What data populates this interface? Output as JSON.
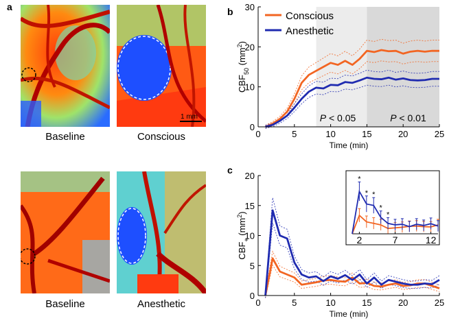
{
  "panels": {
    "a": {
      "letter": "a",
      "captions": [
        "Baseline",
        "Conscious",
        "Baseline",
        "Anesthetic"
      ],
      "scale_bar_label": "1 mm"
    },
    "b": {
      "letter": "b"
    },
    "c": {
      "letter": "c"
    }
  },
  "colors": {
    "conscious": "#f26522",
    "anesthetic": "#1f2bb0",
    "shade_light": "#ececec",
    "shade_dark": "#d9d9d9"
  },
  "chart_data": [
    {
      "id": "b",
      "type": "line",
      "xlabel": "Time (min)",
      "ylabel": "CBF50 (mm2)",
      "xlim": [
        0,
        25
      ],
      "ylim": [
        0,
        30
      ],
      "xticks": [
        0,
        5,
        10,
        15,
        20,
        25
      ],
      "yticks": [
        0,
        10,
        20,
        30
      ],
      "legend": "top-left",
      "annotations": [
        "P < 0.05",
        "P < 0.01"
      ],
      "shaded_regions": [
        [
          8,
          15
        ],
        [
          15,
          25
        ]
      ],
      "series": [
        {
          "name": "Conscious",
          "x": [
            1,
            2,
            3,
            4,
            5,
            6,
            7,
            8,
            9,
            10,
            11,
            12,
            13,
            14,
            15,
            16,
            17,
            18,
            19,
            20,
            21,
            22,
            23,
            24,
            25
          ],
          "y": [
            0,
            0.8,
            2,
            3.8,
            7,
            11,
            13,
            14,
            15,
            16,
            15.5,
            16.5,
            15.5,
            17,
            19,
            18.7,
            19.2,
            18.9,
            19,
            18.3,
            18.8,
            19,
            18.8,
            19,
            19
          ]
        },
        {
          "name": "Anesthetic",
          "x": [
            1,
            2,
            3,
            4,
            5,
            6,
            7,
            8,
            9,
            10,
            11,
            12,
            13,
            14,
            15,
            16,
            17,
            18,
            19,
            20,
            21,
            22,
            23,
            24,
            25
          ],
          "y": [
            0,
            0.5,
            1.5,
            2.8,
            4.8,
            7,
            8.8,
            9.8,
            9.6,
            10.5,
            10.4,
            11.2,
            11,
            11.6,
            12.3,
            12,
            11.9,
            12.3,
            11.8,
            12.1,
            11.7,
            11.6,
            11.7,
            12,
            12
          ]
        }
      ]
    },
    {
      "id": "c",
      "type": "line",
      "xlabel": "Time (min)",
      "ylabel": "CBF+ (mm2)",
      "xlim": [
        0,
        25
      ],
      "ylim": [
        0,
        20
      ],
      "xticks": [
        0,
        5,
        10,
        15,
        20,
        25
      ],
      "yticks": [
        0,
        5,
        10,
        15,
        20
      ],
      "series": [
        {
          "name": "Conscious",
          "x": [
            1,
            2,
            3,
            4,
            5,
            6,
            7,
            8,
            9,
            10,
            11,
            12,
            13,
            14,
            15,
            16,
            17,
            18,
            19,
            20,
            21,
            22,
            23,
            24,
            25
          ],
          "y": [
            0,
            6.2,
            4,
            3.5,
            3,
            1.8,
            2,
            2.2,
            2.5,
            2.6,
            2.4,
            2.3,
            3,
            2,
            2.1,
            1.6,
            1.5,
            1.8,
            2,
            1.6,
            1.7,
            2,
            2,
            1.6,
            1.2
          ]
        },
        {
          "name": "Anesthetic",
          "x": [
            1,
            2,
            3,
            4,
            5,
            6,
            7,
            8,
            9,
            10,
            11,
            12,
            13,
            14,
            15,
            16,
            17,
            18,
            19,
            20,
            21,
            22,
            23,
            24,
            25
          ],
          "y": [
            0,
            14.2,
            10,
            9.5,
            5.5,
            3.5,
            3,
            3.2,
            2.4,
            3.2,
            2.8,
            3.4,
            2.6,
            3.5,
            2,
            3,
            1.8,
            2.6,
            2.3,
            2,
            1.8,
            1.8,
            2,
            1.9,
            2.6
          ]
        }
      ]
    },
    {
      "id": "c-inset",
      "type": "line",
      "xlim": [
        1,
        13
      ],
      "ylim": [
        0,
        20
      ],
      "xticks": [
        2,
        7,
        12
      ],
      "significance": [
        "*",
        "*",
        "*",
        "*",
        "*"
      ],
      "series": [
        {
          "name": "Conscious",
          "x": [
            1,
            2,
            3,
            4,
            5,
            6,
            7,
            8,
            9,
            10,
            11,
            12,
            13
          ],
          "y": [
            0,
            6.2,
            4,
            3.5,
            3,
            1.8,
            2,
            2.2,
            2.5,
            2.6,
            2.4,
            2.3,
            3
          ]
        },
        {
          "name": "Anesthetic",
          "x": [
            1,
            2,
            3,
            4,
            5,
            6,
            7,
            8,
            9,
            10,
            11,
            12,
            13
          ],
          "y": [
            0,
            14.2,
            10,
            9.5,
            5.5,
            3.5,
            3,
            3.2,
            2.4,
            3.2,
            2.8,
            3.4,
            2.6
          ]
        }
      ]
    }
  ]
}
